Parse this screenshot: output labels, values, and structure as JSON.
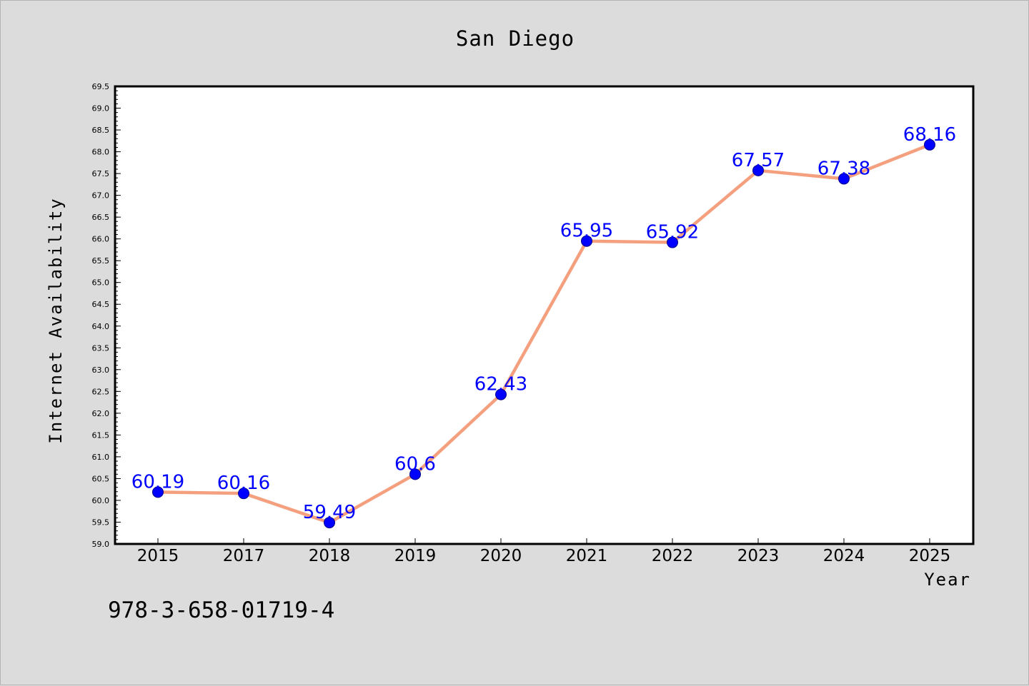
{
  "chart_data": {
    "type": "line",
    "title": "San Diego",
    "xlabel": "Year",
    "ylabel": "Internet Availability",
    "categories": [
      "2015",
      "2017",
      "2018",
      "2019",
      "2020",
      "2021",
      "2022",
      "2023",
      "2024",
      "2025"
    ],
    "values": [
      60.19,
      60.16,
      59.49,
      60.6,
      62.43,
      65.95,
      65.92,
      67.57,
      67.38,
      68.16
    ],
    "data_labels": [
      "60.19",
      "60.16",
      "59.49",
      "60.6",
      "62.43",
      "65.95",
      "65.92",
      "67.57",
      "67.38",
      "68.16"
    ],
    "ylim": [
      59.0,
      69.5
    ],
    "y_ticks": [
      "59.0",
      "59.5",
      "60.0",
      "60.5",
      "61.0",
      "61.5",
      "62.0",
      "62.5",
      "63.0",
      "63.5",
      "64.0",
      "64.5",
      "65.0",
      "65.5",
      "66.0",
      "66.5",
      "67.0",
      "67.5",
      "68.0",
      "68.5",
      "69.0",
      "69.5"
    ],
    "grid": false,
    "legend": "none",
    "colors": {
      "line": "#f4a07f",
      "marker": "#0000ff",
      "marker_edge": "#00008b",
      "data_label": "#0000ff",
      "background": "#dcdcdc",
      "plot_background": "#ffffff"
    }
  },
  "footer": {
    "code": "978-3-658-01719-4"
  }
}
